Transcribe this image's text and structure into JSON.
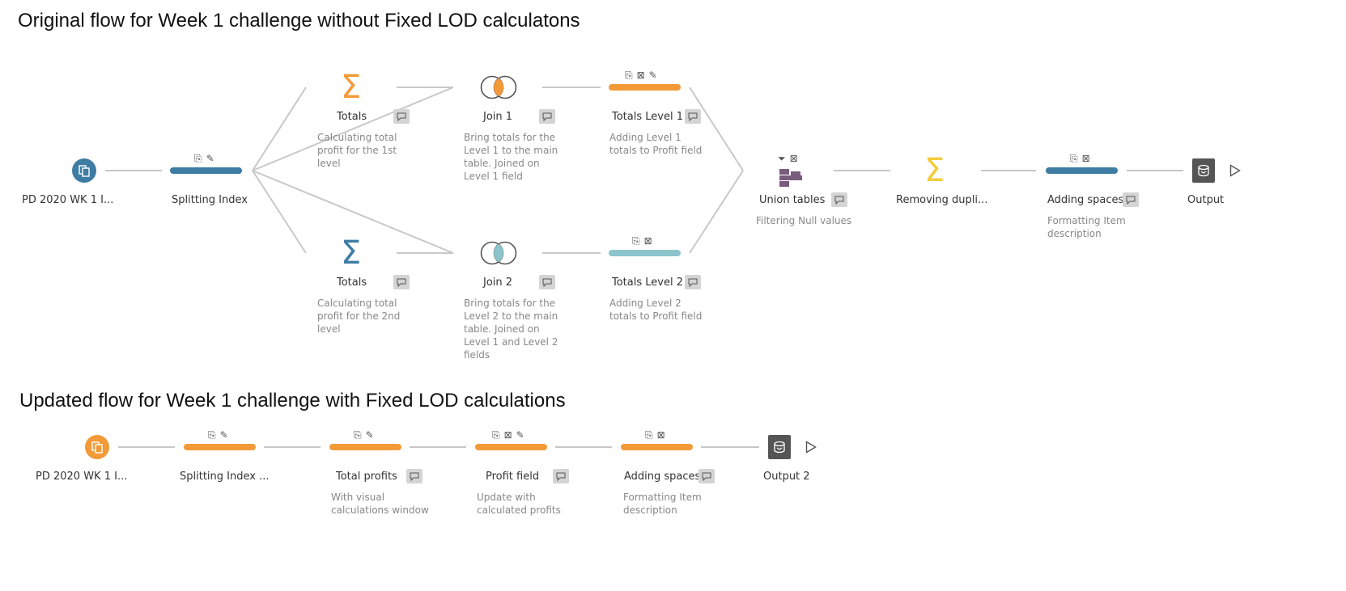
{
  "flow1": {
    "title": "Original flow for Week 1 challenge without Fixed LOD calculatons",
    "input": {
      "label": "PD 2020 WK 1 I...",
      "icon": "input-data-icon"
    },
    "splitting": {
      "label": "Splitting Index",
      "icon": "clean-step-icon"
    },
    "totals1": {
      "label": "Totals",
      "desc": "Calculating total profit for the 1st level",
      "icon": "aggregate-icon"
    },
    "join1": {
      "label": "Join 1",
      "desc": "Bring totals for the Level 1 to the main table. Joined on Level 1 field",
      "icon": "inner-join-icon"
    },
    "totals_level1": {
      "label": "Totals Level 1",
      "desc": "Adding Level 1 totals to Profit field",
      "icon": "clean-step-icon"
    },
    "totals2": {
      "label": "Totals",
      "desc": "Calculating total profit for the 2nd level",
      "icon": "aggregate-icon"
    },
    "join2": {
      "label": "Join 2",
      "desc": "Bring totals for the Level 2 to the main table. Joined on Level 1 and Level 2 fields",
      "icon": "inner-join-icon"
    },
    "totals_level2": {
      "label": "Totals Level 2",
      "desc": "Adding Level 2 totals to Profit field",
      "icon": "clean-step-icon"
    },
    "union": {
      "label": "Union tables",
      "desc": "Filtering Null values",
      "icon": "union-icon"
    },
    "removing": {
      "label": "Removing dupli...",
      "icon": "aggregate-icon"
    },
    "adding_spaces": {
      "label": "Adding spaces",
      "desc": "Formatting Item description",
      "icon": "clean-step-icon"
    },
    "output": {
      "label": "Output",
      "icon": "output-icon"
    }
  },
  "flow2": {
    "title": "Updated flow for Week 1 challenge with Fixed LOD calculations",
    "input": {
      "label": "PD 2020 WK 1 I...",
      "icon": "input-data-icon"
    },
    "splitting": {
      "label": "Splitting Index ...",
      "icon": "clean-step-icon"
    },
    "total_profits": {
      "label": "Total profits",
      "desc": "With visual calculations window",
      "icon": "clean-step-icon"
    },
    "profit_field": {
      "label": "Profit field",
      "desc": "Update with calculated profits",
      "icon": "clean-step-icon"
    },
    "adding_spaces": {
      "label": "Adding spaces",
      "desc": "Formatting Item description",
      "icon": "clean-step-icon"
    },
    "output": {
      "label": "Output 2",
      "icon": "output-icon"
    }
  },
  "colors": {
    "blue": "#3f7ca3",
    "orange": "#f29a38",
    "teal": "#8cc4cc",
    "purple": "#7a5c7e",
    "yellow": "#f2cc3a",
    "connector": "#c8c8c8"
  }
}
